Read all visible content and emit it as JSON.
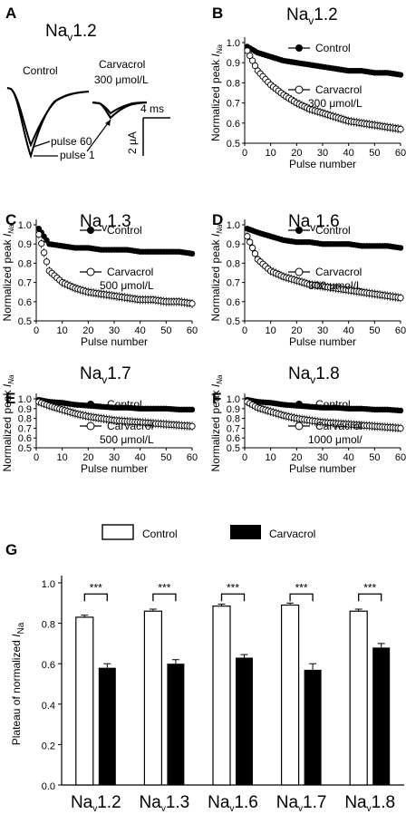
{
  "panel_a": {
    "letter": "A",
    "title_main": "Na",
    "title_sub": "v",
    "title_num": "1.2",
    "control_label": "Control",
    "drug_label": "Carvacrol",
    "drug_dose": "300 μmol/L",
    "pulse60_label": "pulse 60",
    "pulse1_label": "pulse 1",
    "scale_time": "4 ms",
    "scale_current": "2 μA"
  },
  "chart_data": [
    {
      "type": "scatter",
      "letter": "B",
      "title_main": "Na",
      "title_sub": "v",
      "title_num": "1.2",
      "xlabel": "Pulse number",
      "ylabel_main": "Normalized peak ",
      "ylabel_i": "I",
      "ylabel_sub": "Na",
      "xlim": [
        0,
        60
      ],
      "ylim": [
        0.5,
        1.0
      ],
      "xticks": [
        0,
        10,
        20,
        30,
        40,
        50,
        60
      ],
      "yticks": [
        0.5,
        0.6,
        0.7,
        0.8,
        0.9,
        1.0
      ],
      "legend_control": "Control",
      "legend_drug": "Carvacrol",
      "legend_drug_dose": "300 μmol/L",
      "series": [
        {
          "name": "Control",
          "x": [
            1,
            5,
            10,
            15,
            20,
            25,
            30,
            35,
            40,
            45,
            50,
            55,
            60
          ],
          "values": [
            0.98,
            0.95,
            0.93,
            0.91,
            0.9,
            0.89,
            0.88,
            0.87,
            0.86,
            0.86,
            0.85,
            0.85,
            0.84
          ]
        },
        {
          "name": "Carvacrol",
          "x": [
            1,
            5,
            10,
            15,
            20,
            25,
            30,
            35,
            40,
            45,
            50,
            55,
            60
          ],
          "values": [
            0.96,
            0.86,
            0.79,
            0.74,
            0.7,
            0.67,
            0.65,
            0.63,
            0.61,
            0.6,
            0.59,
            0.58,
            0.57
          ]
        }
      ]
    },
    {
      "type": "scatter",
      "letter": "C",
      "title_main": "Na",
      "title_sub": "v",
      "title_num": "1.3",
      "xlabel": "Pulse number",
      "ylabel_main": "Normalized peak ",
      "ylabel_i": "I",
      "ylabel_sub": "Na",
      "xlim": [
        0,
        60
      ],
      "ylim": [
        0.5,
        1.0
      ],
      "xticks": [
        0,
        10,
        20,
        30,
        40,
        50,
        60
      ],
      "yticks": [
        0.5,
        0.6,
        0.7,
        0.8,
        0.9,
        1.0
      ],
      "legend_control": "Control",
      "legend_drug": "Carvacrol",
      "legend_drug_dose": "500 μmol/L",
      "series": [
        {
          "name": "Control",
          "x": [
            1,
            5,
            10,
            15,
            20,
            25,
            30,
            35,
            40,
            45,
            50,
            55,
            60
          ],
          "values": [
            0.98,
            0.9,
            0.89,
            0.88,
            0.88,
            0.87,
            0.87,
            0.87,
            0.86,
            0.86,
            0.86,
            0.86,
            0.85
          ]
        },
        {
          "name": "Carvacrol",
          "x": [
            1,
            5,
            10,
            15,
            20,
            25,
            30,
            35,
            40,
            45,
            50,
            55,
            60
          ],
          "values": [
            0.95,
            0.76,
            0.7,
            0.67,
            0.65,
            0.64,
            0.63,
            0.62,
            0.61,
            0.61,
            0.6,
            0.6,
            0.59
          ]
        }
      ]
    },
    {
      "type": "scatter",
      "letter": "D",
      "title_main": "Na",
      "title_sub": "v",
      "title_num": "1.6",
      "xlabel": "Pulse number",
      "ylabel_main": "Normalized peak ",
      "ylabel_i": "I",
      "ylabel_sub": "Na",
      "xlim": [
        0,
        60
      ],
      "ylim": [
        0.5,
        1.0
      ],
      "xticks": [
        0,
        10,
        20,
        30,
        40,
        50,
        60
      ],
      "yticks": [
        0.5,
        0.6,
        0.7,
        0.8,
        0.9,
        1.0
      ],
      "legend_control": "Control",
      "legend_drug": "Carvacrol",
      "legend_drug_dose": "300 μmol/L",
      "series": [
        {
          "name": "Control",
          "x": [
            1,
            5,
            10,
            15,
            20,
            25,
            30,
            35,
            40,
            45,
            50,
            55,
            60
          ],
          "values": [
            0.98,
            0.96,
            0.94,
            0.92,
            0.91,
            0.91,
            0.9,
            0.9,
            0.9,
            0.89,
            0.89,
            0.89,
            0.88
          ]
        },
        {
          "name": "Carvacrol",
          "x": [
            1,
            5,
            10,
            15,
            20,
            25,
            30,
            35,
            40,
            45,
            50,
            55,
            60
          ],
          "values": [
            0.94,
            0.82,
            0.76,
            0.73,
            0.71,
            0.69,
            0.68,
            0.67,
            0.66,
            0.65,
            0.64,
            0.63,
            0.62
          ]
        }
      ]
    },
    {
      "type": "scatter",
      "letter": "E",
      "title_main": "Na",
      "title_sub": "v",
      "title_num": "1.7",
      "xlabel": "Pulse number",
      "ylabel_main": "Normalized peak ",
      "ylabel_i": "I",
      "ylabel_sub": "Na",
      "xlim": [
        0,
        60
      ],
      "ylim": [
        0.5,
        1.0
      ],
      "xticks": [
        0,
        10,
        20,
        30,
        40,
        50,
        60
      ],
      "yticks": [
        0.5,
        0.6,
        0.7,
        0.8,
        0.9,
        1.0
      ],
      "legend_control": "Control",
      "legend_drug": "Carvacrol",
      "legend_drug_dose": "500 μmol/L",
      "series": [
        {
          "name": "Control",
          "x": [
            1,
            5,
            10,
            15,
            20,
            25,
            30,
            35,
            40,
            45,
            50,
            55,
            60
          ],
          "values": [
            0.99,
            0.97,
            0.96,
            0.94,
            0.93,
            0.92,
            0.91,
            0.91,
            0.9,
            0.9,
            0.9,
            0.89,
            0.89
          ]
        },
        {
          "name": "Carvacrol",
          "x": [
            1,
            5,
            10,
            15,
            20,
            25,
            30,
            35,
            40,
            45,
            50,
            55,
            60
          ],
          "values": [
            0.97,
            0.93,
            0.89,
            0.85,
            0.82,
            0.8,
            0.78,
            0.77,
            0.76,
            0.75,
            0.74,
            0.73,
            0.72
          ]
        }
      ]
    },
    {
      "type": "scatter",
      "letter": "F",
      "title_main": "Na",
      "title_sub": "v",
      "title_num": "1.8",
      "xlabel": "Pulse number",
      "ylabel_main": "Normalized peak ",
      "ylabel_i": "I",
      "ylabel_sub": "Na",
      "xlim": [
        0,
        60
      ],
      "ylim": [
        0.5,
        1.0
      ],
      "xticks": [
        0,
        10,
        20,
        30,
        40,
        50,
        60
      ],
      "yticks": [
        0.5,
        0.6,
        0.7,
        0.8,
        0.9,
        1.0
      ],
      "legend_control": "Control",
      "legend_drug": "Carvacrol",
      "legend_drug_dose": "1000 μmol/",
      "series": [
        {
          "name": "Control",
          "x": [
            1,
            5,
            10,
            15,
            20,
            25,
            30,
            35,
            40,
            45,
            50,
            55,
            60
          ],
          "values": [
            0.99,
            0.97,
            0.96,
            0.94,
            0.93,
            0.92,
            0.91,
            0.91,
            0.9,
            0.9,
            0.89,
            0.89,
            0.88
          ]
        },
        {
          "name": "Carvacrol",
          "x": [
            1,
            5,
            10,
            15,
            20,
            25,
            30,
            35,
            40,
            45,
            50,
            55,
            60
          ],
          "values": [
            0.97,
            0.91,
            0.87,
            0.83,
            0.8,
            0.78,
            0.76,
            0.75,
            0.74,
            0.73,
            0.72,
            0.71,
            0.7
          ]
        }
      ]
    },
    {
      "type": "bar",
      "letter": "G",
      "ylabel_main": "Plateau of normalized ",
      "ylabel_i": "I",
      "ylabel_sub": "Na",
      "ylim": [
        0.0,
        1.0
      ],
      "yticks": [
        0.0,
        0.2,
        0.4,
        0.6,
        0.8,
        1.0
      ],
      "categories": [
        {
          "main": "Na",
          "sub": "v",
          "num": "1.2"
        },
        {
          "main": "Na",
          "sub": "v",
          "num": "1.3"
        },
        {
          "main": "Na",
          "sub": "v",
          "num": "1.6"
        },
        {
          "main": "Na",
          "sub": "v",
          "num": "1.7"
        },
        {
          "main": "Na",
          "sub": "v",
          "num": "1.8"
        }
      ],
      "series": [
        {
          "name": "Control",
          "values": [
            0.83,
            0.86,
            0.885,
            0.89,
            0.86
          ],
          "errors": [
            0.01,
            0.01,
            0.01,
            0.01,
            0.01
          ]
        },
        {
          "name": "Carvacrol",
          "values": [
            0.58,
            0.6,
            0.63,
            0.57,
            0.68
          ],
          "errors": [
            0.02,
            0.02,
            0.015,
            0.03,
            0.02
          ]
        }
      ],
      "significance": [
        "***",
        "***",
        "***",
        "***",
        "***"
      ],
      "legend_placement": "top"
    }
  ]
}
